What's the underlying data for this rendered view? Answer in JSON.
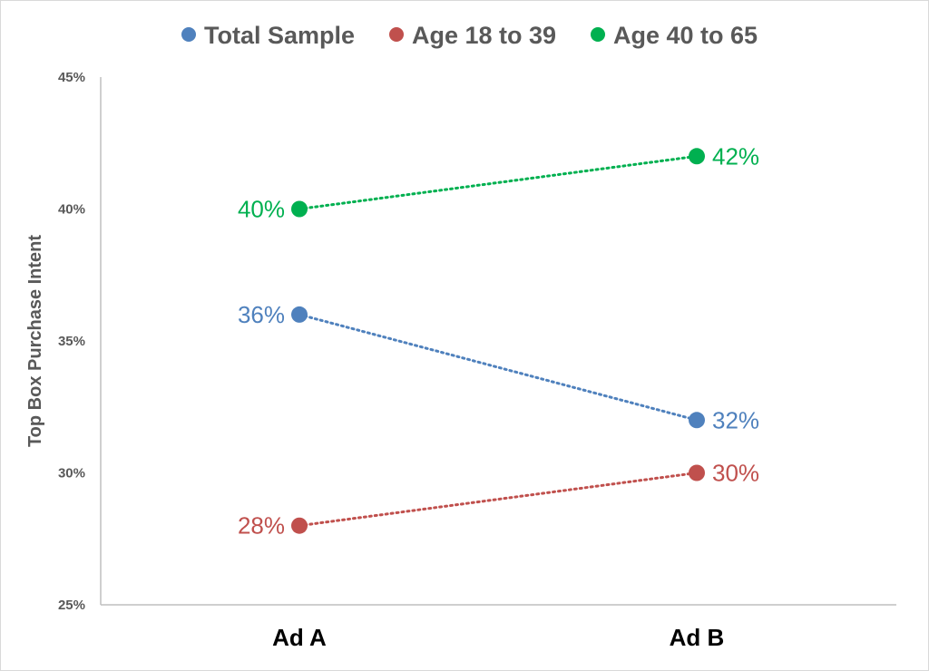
{
  "chart_data": {
    "type": "line",
    "categories": [
      "Ad A",
      "Ad B"
    ],
    "ylabel": "Top Box Purchase Intent",
    "ylim": [
      25,
      45
    ],
    "y_ticks": [
      25,
      30,
      35,
      40,
      45
    ],
    "y_tick_labels": [
      "25%",
      "30%",
      "35%",
      "40%",
      "45%"
    ],
    "grid": false,
    "legend_position": "top",
    "line_style": "dotted",
    "series": [
      {
        "name": "Total Sample",
        "color": "#4F81BD",
        "values": [
          36,
          32
        ],
        "labels": [
          "36%",
          "32%"
        ]
      },
      {
        "name": "Age 18 to 39",
        "color": "#C0504D",
        "values": [
          28,
          30
        ],
        "labels": [
          "28%",
          "30%"
        ]
      },
      {
        "name": "Age 40 to 65",
        "color": "#00B050",
        "values": [
          40,
          42
        ],
        "labels": [
          "40%",
          "42%"
        ]
      }
    ]
  }
}
